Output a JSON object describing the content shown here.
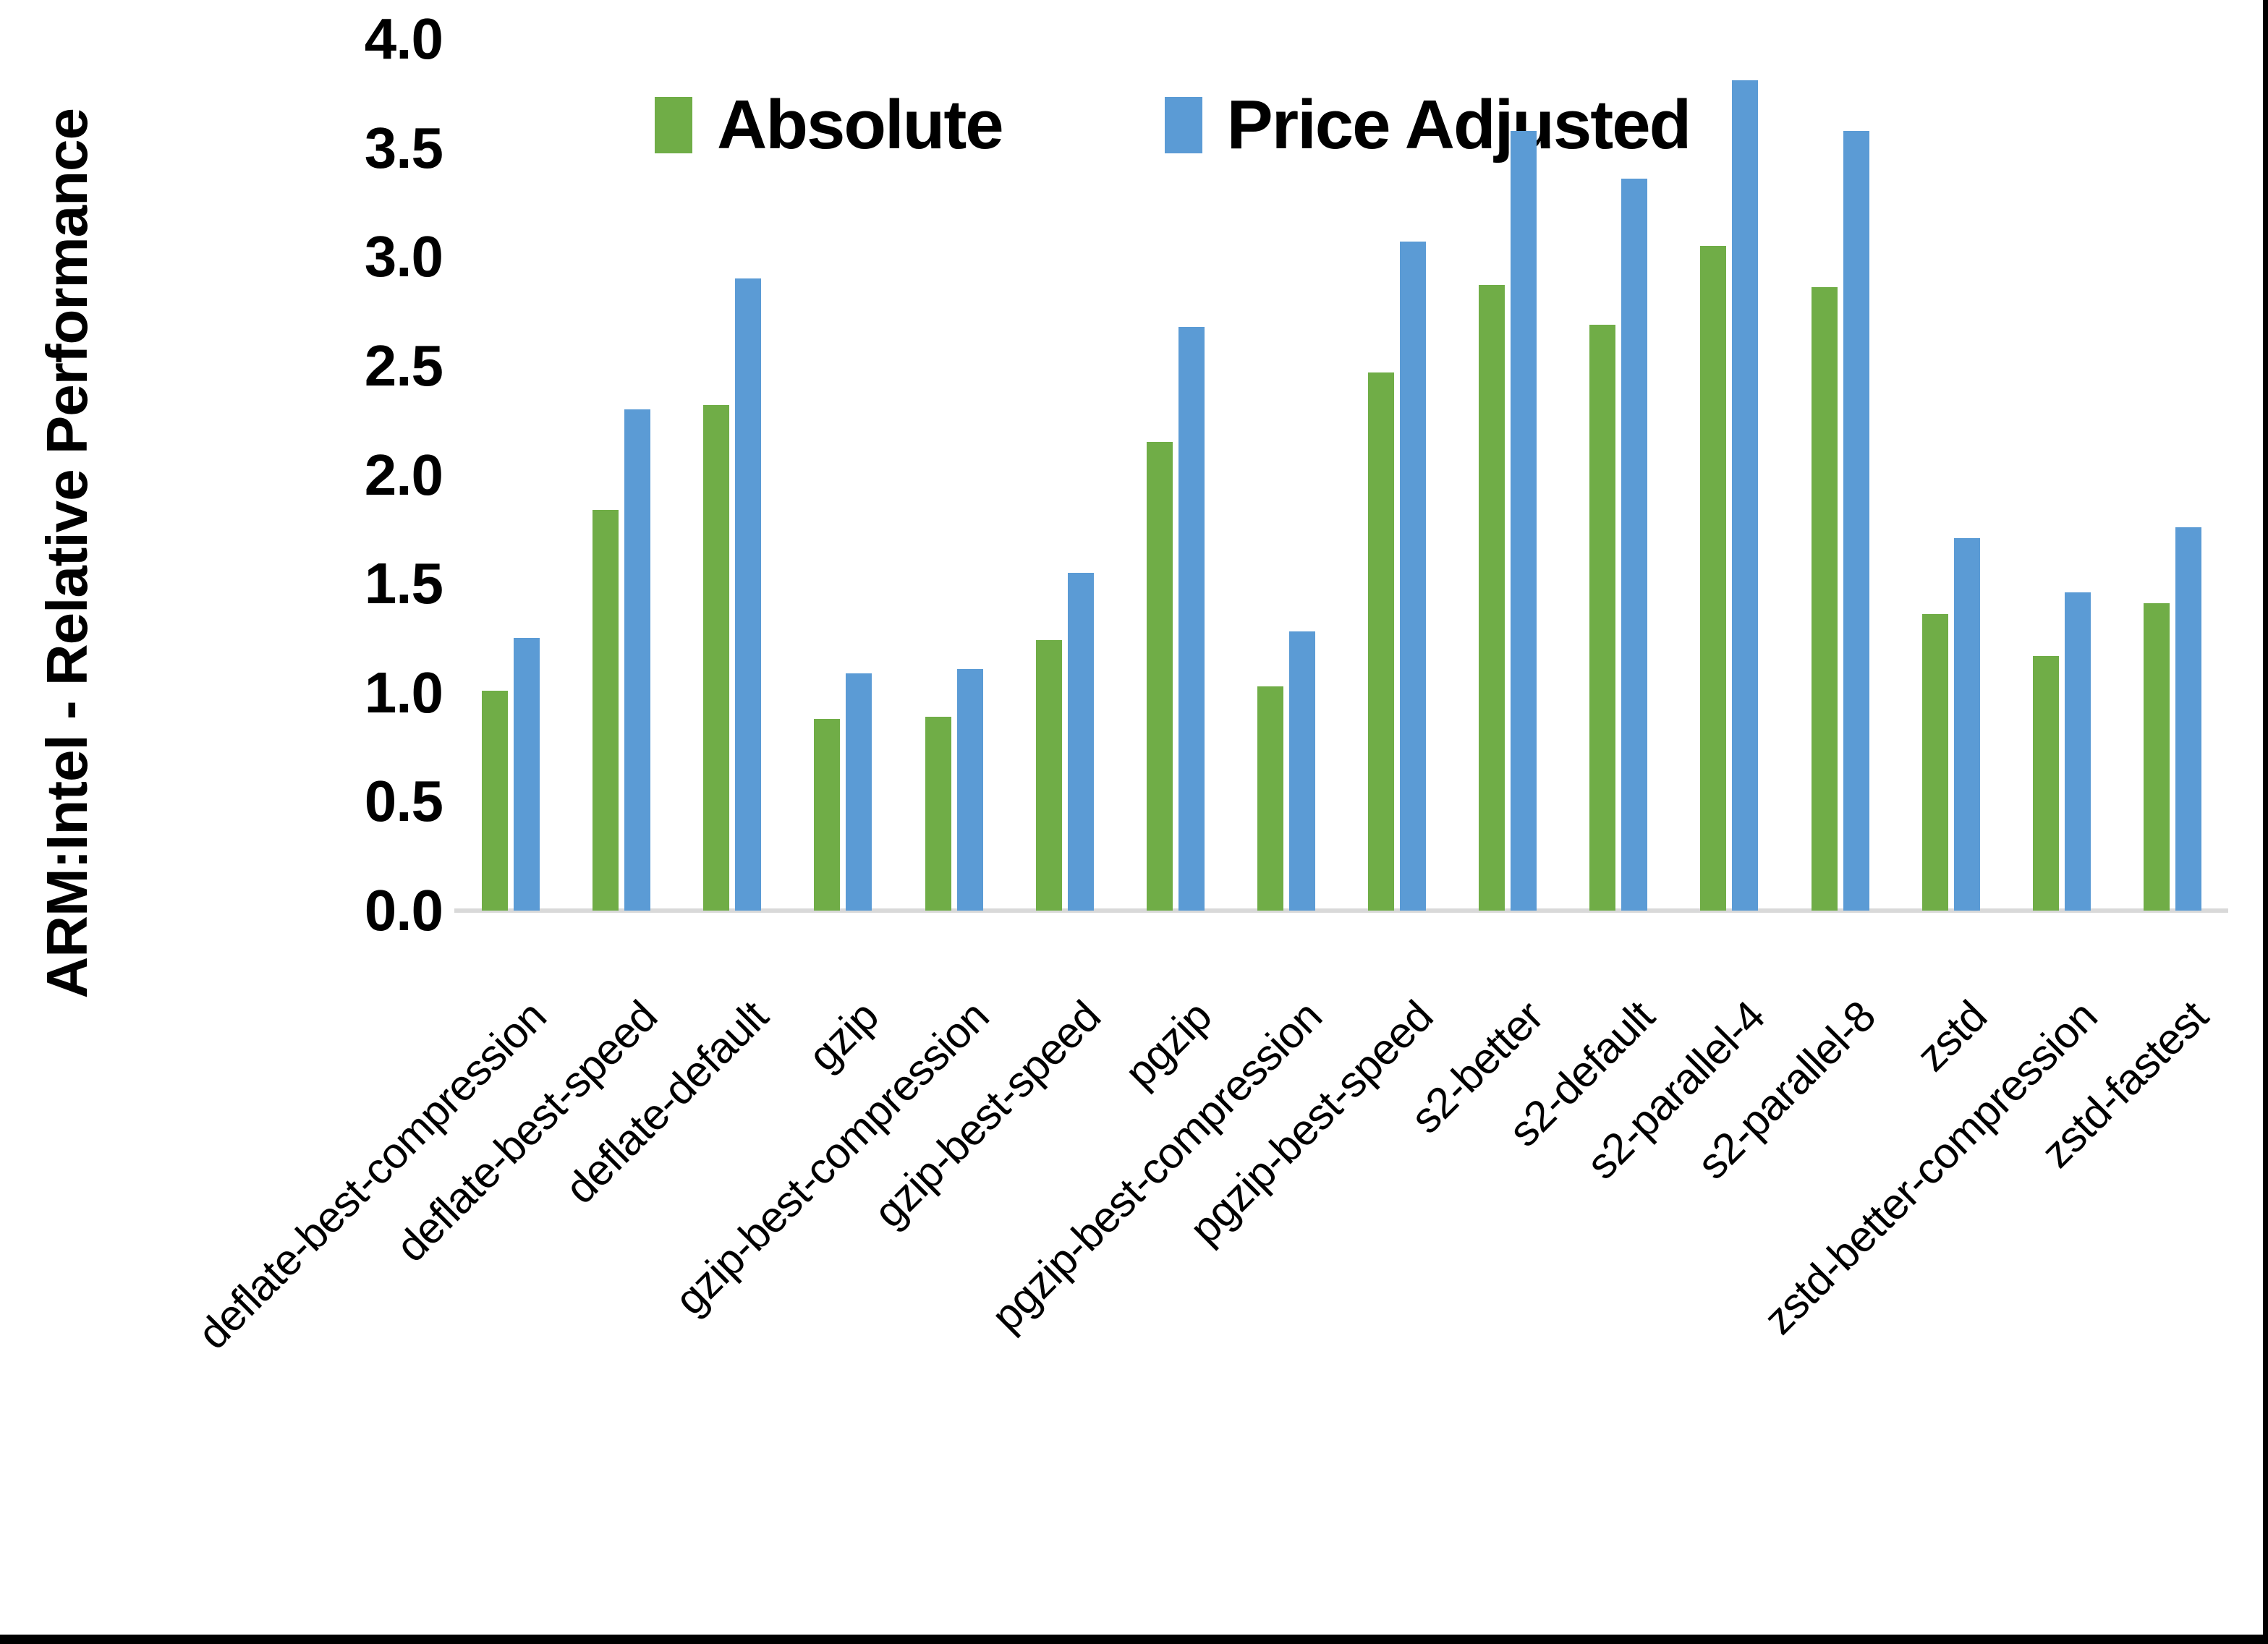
{
  "figure": {
    "background": "#FFFFFF",
    "window_border_color": "#000000"
  },
  "chart_data": {
    "type": "bar",
    "title": "",
    "ylabel": "ARM:Intel - Relative Performance",
    "xlabel": "",
    "ylim": [
      0.0,
      4.0
    ],
    "ytick_step": 0.5,
    "ytick_labels": [
      "4.0",
      "3.5",
      "3.0",
      "2.5",
      "2.0",
      "1.5",
      "1.0",
      "0.5",
      "0.0"
    ],
    "grid": false,
    "legend_position": "top-center",
    "axis_line_color": "#D9D9D9",
    "categories": [
      "deflate-best-compression",
      "deflate-best-speed",
      "deflate-default",
      "gzip",
      "gzip-best-compression",
      "gzip-best-speed",
      "pgzip",
      "pgzip-best-compression",
      "pgzip-best-speed",
      "s2-better",
      "s2-default",
      "s2-parallel-4",
      "s2-parallel-8",
      "zstd",
      "zstd-better-compression",
      "zstd-fastest"
    ],
    "series": [
      {
        "name": "Absolute",
        "color": "#70AD47",
        "values": [
          1.01,
          1.84,
          2.32,
          0.88,
          0.89,
          1.24,
          2.15,
          1.03,
          2.47,
          2.87,
          2.69,
          3.05,
          2.86,
          1.36,
          1.17,
          1.41
        ]
      },
      {
        "name": "Price Adjusted",
        "color": "#5B9BD5",
        "values": [
          1.25,
          2.3,
          2.9,
          1.09,
          1.11,
          1.55,
          2.68,
          1.28,
          3.07,
          3.58,
          3.36,
          3.81,
          3.58,
          1.71,
          1.46,
          1.76
        ]
      }
    ]
  }
}
